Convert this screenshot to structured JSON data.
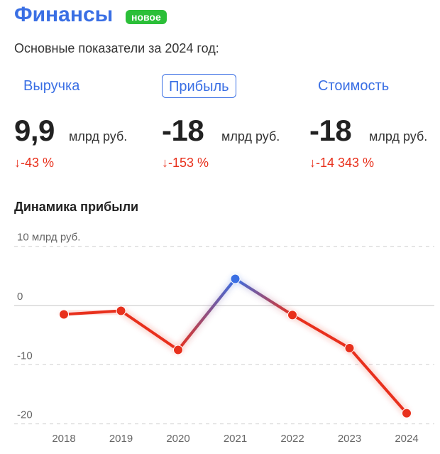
{
  "header": {
    "title": "Финансы",
    "badge": "новое",
    "subtitle": "Основные показатели за 2024 год:"
  },
  "tabs": [
    {
      "label": "Выручка",
      "active": false
    },
    {
      "label": "Прибыль",
      "active": true
    },
    {
      "label": "Стоимость",
      "active": false
    }
  ],
  "metrics": [
    {
      "value": "9,9",
      "unit": "млрд руб.",
      "change": "↓-43 %"
    },
    {
      "value": "-18",
      "unit": "млрд руб.",
      "change": "↓-153 %"
    },
    {
      "value": "-18",
      "unit": "млрд руб.",
      "change": "↓-14 343 %"
    }
  ],
  "chart_title": "Динамика прибыли",
  "colors": {
    "accent": "#3a6fe4",
    "badge": "#2bbf38",
    "negative": "#e8301c",
    "positive_line": "#3a6fe4"
  },
  "chart_data": {
    "type": "line",
    "title": "Динамика прибыли",
    "y_unit_label": "10 млрд руб.",
    "categories": [
      "2018",
      "2019",
      "2020",
      "2021",
      "2022",
      "2023",
      "2024"
    ],
    "series": [
      {
        "values": [
          -1.5,
          -0.9,
          -7.5,
          4.5,
          -1.6,
          -7.2,
          -18.2
        ]
      }
    ],
    "y_ticks": [
      "10 млрд руб.",
      "0",
      "-10",
      "-20"
    ],
    "y_tick_values": [
      10,
      0,
      -10,
      -20
    ],
    "ylim": [
      -22,
      12
    ],
    "grid": true,
    "legend": "none"
  }
}
